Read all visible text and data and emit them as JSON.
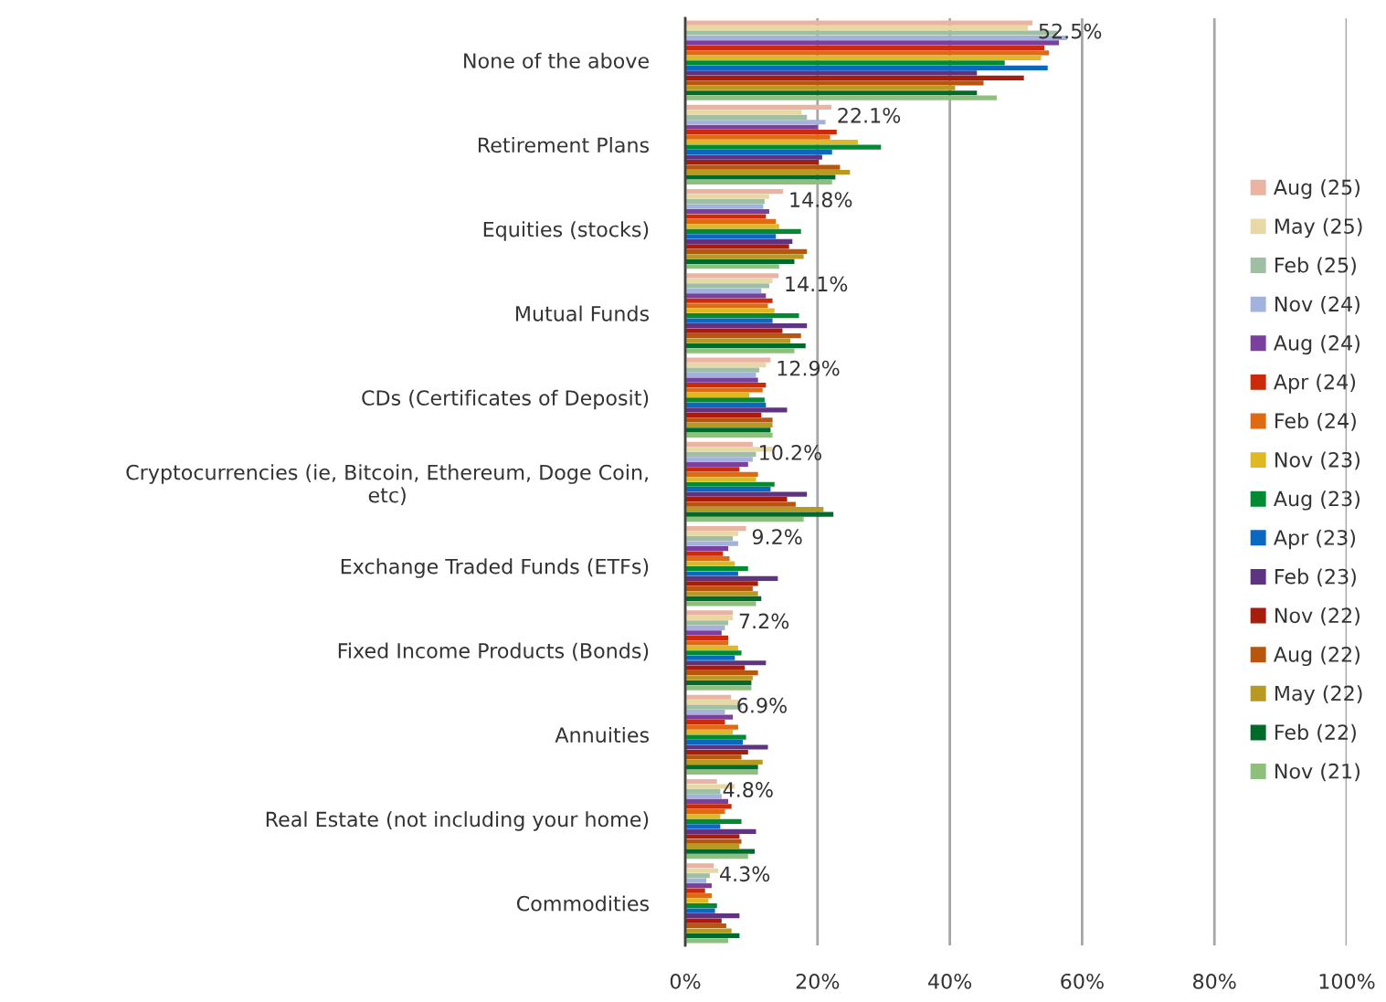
{
  "chart_data": {
    "type": "bar",
    "orientation": "horizontal",
    "categories": [
      "None of the above",
      "Retirement Plans",
      "Equities (stocks)",
      "Mutual Funds",
      "CDs (Certificates of Deposit)",
      "Cryptocurrencies (ie, Bitcoin, Ethereum, Doge Coin,\netc)",
      "Exchange Traded Funds (ETFs)",
      "Fixed Income Products (Bonds)",
      "Annuities",
      "Real Estate (not including your home)",
      "Commodities"
    ],
    "series": [
      {
        "name": "Aug (25)",
        "color": "#eab3a2",
        "values": [
          52.5,
          22.1,
          14.8,
          14.1,
          12.9,
          10.2,
          9.2,
          7.2,
          6.9,
          4.8,
          4.3
        ],
        "value_labels": [
          "52.5%",
          "22.1%",
          "14.8%",
          "14.1%",
          "12.9%",
          "10.2%",
          "9.2%",
          "7.2%",
          "6.9%",
          "4.8%",
          "4.3%"
        ]
      },
      {
        "name": "May (25)",
        "color": "#e8d8a6",
        "values": [
          51.8,
          17.6,
          12.7,
          13.2,
          12.2,
          13.2,
          8.0,
          7.2,
          8.0,
          7.5,
          5.0
        ]
      },
      {
        "name": "Feb (25)",
        "color": "#a0bfa2",
        "values": [
          56.2,
          18.4,
          12.0,
          12.7,
          11.2,
          10.7,
          7.2,
          6.5,
          8.5,
          5.3,
          3.7
        ]
      },
      {
        "name": "Nov (24)",
        "color": "#a2b2dc",
        "values": [
          57.7,
          21.2,
          11.8,
          11.5,
          10.7,
          10.2,
          8.0,
          6.0,
          6.0,
          5.5,
          3.2
        ]
      },
      {
        "name": "Aug (24)",
        "color": "#7b3f9e",
        "values": [
          56.5,
          20.0,
          12.7,
          12.2,
          11.0,
          9.5,
          6.5,
          5.5,
          7.2,
          6.5,
          4.0
        ]
      },
      {
        "name": "Apr (24)",
        "color": "#cc2a0a",
        "values": [
          54.3,
          22.9,
          12.2,
          13.2,
          12.2,
          8.2,
          5.7,
          6.5,
          6.0,
          7.0,
          3.0
        ]
      },
      {
        "name": "Feb (24)",
        "color": "#e06a12",
        "values": [
          55.0,
          21.9,
          13.7,
          12.5,
          11.7,
          11.0,
          6.7,
          6.5,
          8.0,
          6.0,
          4.0
        ]
      },
      {
        "name": "Nov (23)",
        "color": "#e0b822",
        "values": [
          53.8,
          26.1,
          14.2,
          13.5,
          9.7,
          10.7,
          7.5,
          8.0,
          7.2,
          5.3,
          3.5
        ]
      },
      {
        "name": "Aug (23)",
        "color": "#008a32",
        "values": [
          48.3,
          29.6,
          17.5,
          17.2,
          12.0,
          13.5,
          9.5,
          8.5,
          9.2,
          8.5,
          4.8
        ]
      },
      {
        "name": "Apr (23)",
        "color": "#0a68c0",
        "values": [
          54.8,
          22.2,
          13.7,
          13.2,
          12.2,
          12.9,
          8.0,
          7.5,
          8.7,
          5.3,
          4.5
        ]
      },
      {
        "name": "Feb (23)",
        "color": "#5e3382",
        "values": [
          44.1,
          20.7,
          16.2,
          18.4,
          15.4,
          18.4,
          14.0,
          12.2,
          12.5,
          10.7,
          8.2
        ]
      },
      {
        "name": "Nov (22)",
        "color": "#a81c0c",
        "values": [
          51.2,
          20.2,
          15.7,
          14.7,
          11.5,
          15.4,
          11.0,
          9.0,
          9.5,
          8.2,
          5.5
        ]
      },
      {
        "name": "Aug (22)",
        "color": "#b8560e",
        "values": [
          45.1,
          23.4,
          18.4,
          17.5,
          13.2,
          16.7,
          10.2,
          11.0,
          8.5,
          8.5,
          6.2
        ]
      },
      {
        "name": "May (22)",
        "color": "#b89a22",
        "values": [
          40.8,
          24.9,
          17.9,
          15.9,
          13.2,
          20.9,
          11.0,
          10.2,
          11.7,
          8.2,
          7.0
        ]
      },
      {
        "name": "Feb (22)",
        "color": "#006a2a",
        "values": [
          44.1,
          22.7,
          16.5,
          18.2,
          12.9,
          22.4,
          11.5,
          10.0,
          11.0,
          10.5,
          8.2
        ]
      },
      {
        "name": "Nov (21)",
        "color": "#8cc07c",
        "values": [
          47.1,
          22.2,
          14.2,
          16.5,
          13.2,
          17.9,
          10.7,
          10.0,
          11.0,
          9.5,
          6.5
        ]
      }
    ],
    "xlim": [
      0,
      100
    ],
    "xticks": [
      {
        "value": 0,
        "label": "0%"
      },
      {
        "value": 20,
        "label": "20%"
      },
      {
        "value": 40,
        "label": "40%"
      },
      {
        "value": 60,
        "label": "60%"
      },
      {
        "value": 80,
        "label": "80%"
      },
      {
        "value": 100,
        "label": "100%"
      }
    ],
    "grid": "x",
    "legend": "right"
  }
}
